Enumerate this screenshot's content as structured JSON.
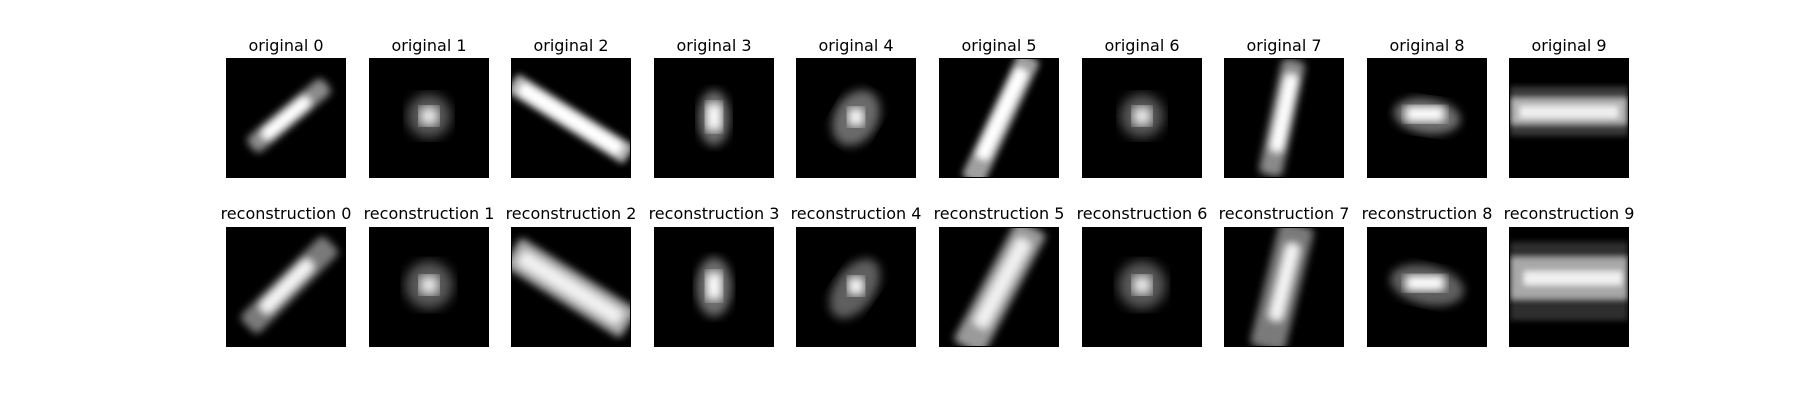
{
  "rows": [
    {
      "titles": [
        "original 0",
        "original 1",
        "original 2",
        "original 3",
        "original 4",
        "original 5",
        "original 6",
        "original 7",
        "original 8",
        "original 9"
      ]
    },
    {
      "titles": [
        "reconstruction 0",
        "reconstruction 1",
        "reconstruction 2",
        "reconstruction 3",
        "reconstruction 4",
        "reconstruction 5",
        "reconstruction 6",
        "reconstruction 7",
        "reconstruction 8",
        "reconstruction 9"
      ]
    }
  ],
  "colors": {
    "background": "#ffffff",
    "image_bg": "#000000",
    "text": "#000000"
  }
}
